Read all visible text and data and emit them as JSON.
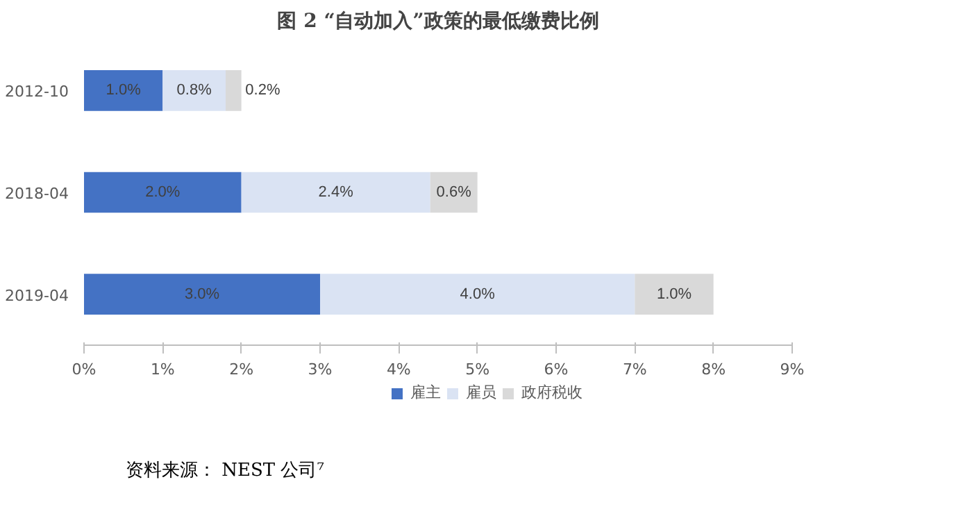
{
  "chart_data": {
    "type": "bar",
    "orientation": "horizontal",
    "stacked": true,
    "title": "图 2 “自动加入”政策的最低缴费比例",
    "categories": [
      "2012-10",
      "2018-04",
      "2019-04"
    ],
    "series": [
      {
        "name": "雇主",
        "color": "#4472c4",
        "values": [
          1.0,
          2.0,
          3.0
        ],
        "value_labels": [
          "1.0%",
          "2.0%",
          "3.0%"
        ]
      },
      {
        "name": "雇员",
        "color": "#dae3f3",
        "values": [
          0.8,
          2.4,
          4.0
        ],
        "value_labels": [
          "0.8%",
          "2.4%",
          "4.0%"
        ]
      },
      {
        "name": "政府税收",
        "color": "#d9d9d9",
        "values": [
          0.2,
          0.6,
          1.0
        ],
        "value_labels": [
          "0.2%",
          "0.6%",
          "1.0%"
        ]
      }
    ],
    "xlim": [
      0,
      9
    ],
    "xticks": [
      {
        "value": 0,
        "label": "0%"
      },
      {
        "value": 1,
        "label": "1%"
      },
      {
        "value": 2,
        "label": "2%"
      },
      {
        "value": 3,
        "label": "3%"
      },
      {
        "value": 4,
        "label": "4%"
      },
      {
        "value": 5,
        "label": "5%"
      },
      {
        "value": 6,
        "label": "6%"
      },
      {
        "value": 7,
        "label": "7%"
      },
      {
        "value": 8,
        "label": "8%"
      },
      {
        "value": 9,
        "label": "9%"
      }
    ],
    "grid": false,
    "legend": "bottom",
    "annotations": [
      "资料来源：  NEST 公司⁷"
    ]
  }
}
